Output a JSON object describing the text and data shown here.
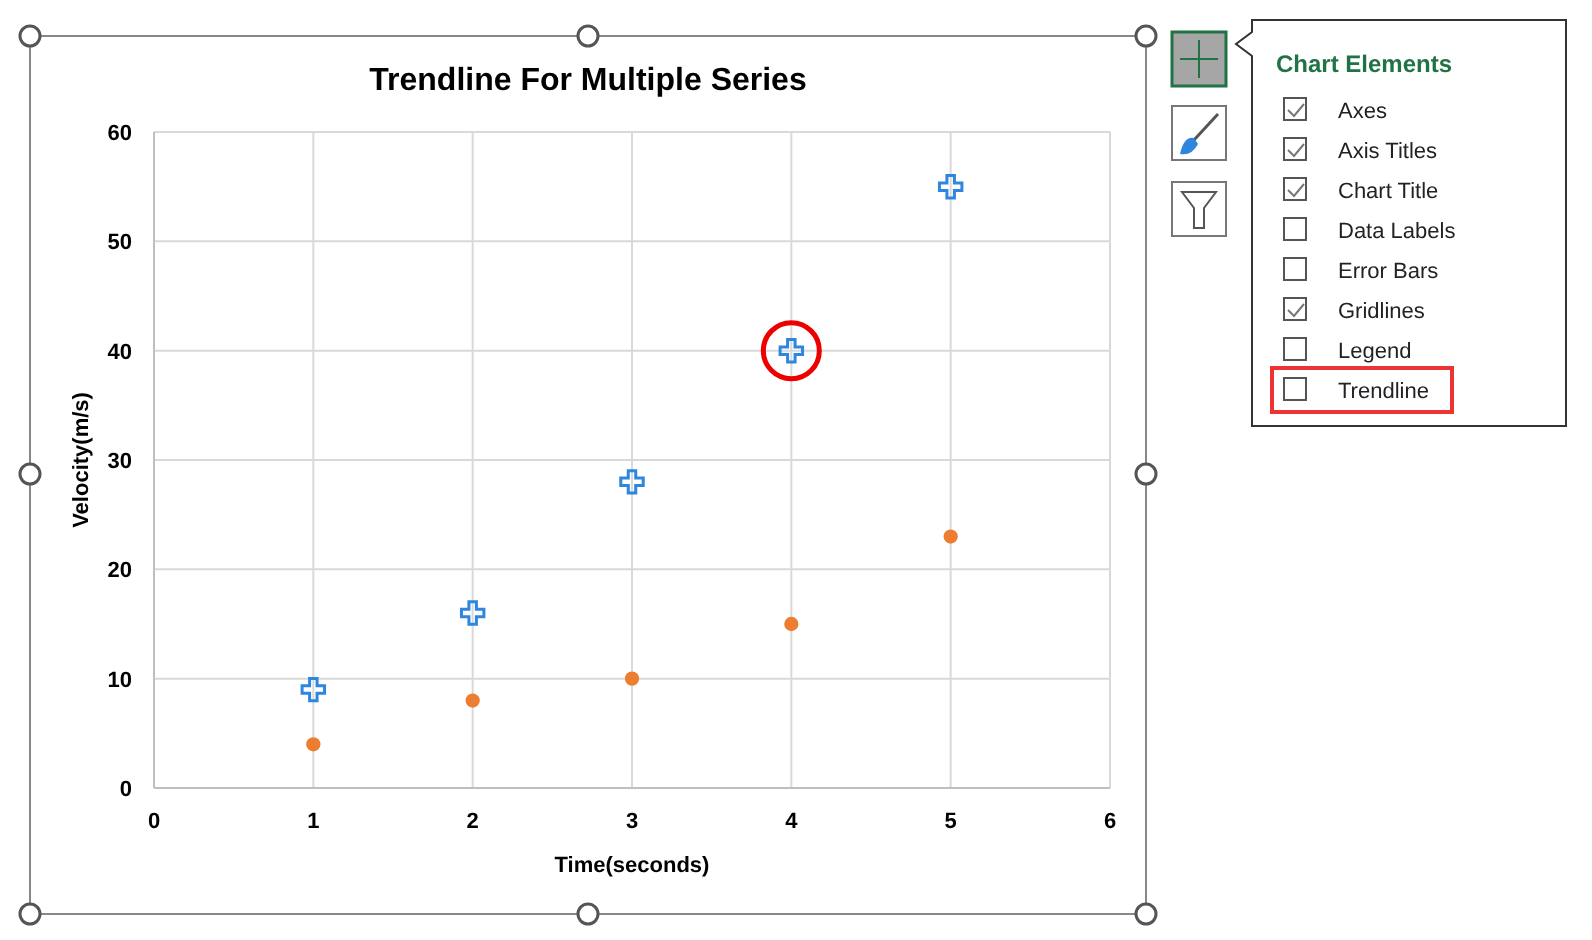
{
  "chart_data": [
    {
      "type": "scatter",
      "title": "Trendline For Multiple Series",
      "xlabel": "Time(seconds)",
      "ylabel": "Velocity(m/s)",
      "x": [
        1,
        2,
        3,
        4,
        5
      ],
      "series": [
        {
          "color": "#2e86de",
          "values": [
            9,
            16,
            28,
            40,
            55
          ],
          "marker": "cross"
        },
        {
          "color": "#ed7d31",
          "values": [
            4,
            8,
            10,
            15,
            23
          ],
          "marker": "circle"
        }
      ],
      "xlim": [
        0,
        6
      ],
      "xticks": [
        0,
        1,
        2,
        3,
        4,
        5,
        6
      ],
      "ylim": [
        0,
        60
      ],
      "yticks": [
        0,
        10,
        20,
        30,
        40,
        50,
        60
      ],
      "grid": true
    },
    {
      "type": "other",
      "title": "Chart Elements",
      "annotations": [
        "Axes",
        "Axis Titles",
        "Chart Title",
        "Data Labels",
        "Error Bars",
        "Gridlines",
        "Legend",
        "Trendline"
      ]
    }
  ]
}
